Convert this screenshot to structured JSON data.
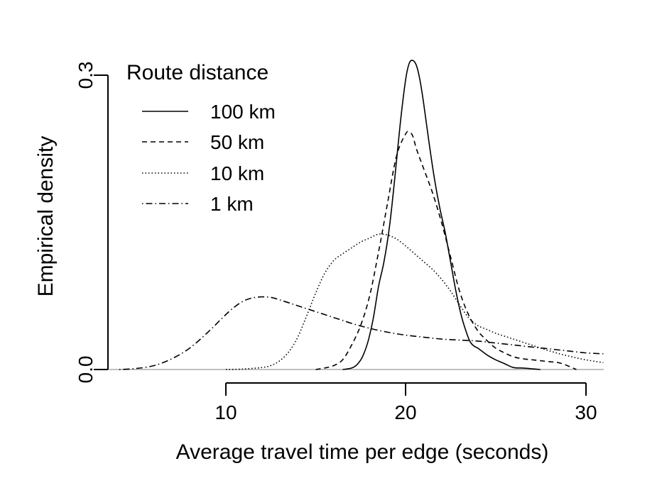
{
  "chart_data": {
    "type": "line",
    "title": "",
    "xlabel": "Average travel time per edge (seconds)",
    "ylabel": "Empirical density",
    "xlim": [
      4,
      31
    ],
    "ylim": [
      0.0,
      0.32
    ],
    "xticks": [
      10,
      20,
      30
    ],
    "yticks": [
      0.0,
      0.3
    ],
    "xtick_labels": [
      "10",
      "20",
      "30"
    ],
    "ytick_labels": [
      "0.0",
      "0.3"
    ],
    "grid": false,
    "legend": {
      "title": "Route distance",
      "position": "top-left"
    },
    "series": [
      {
        "name": "100 km",
        "style": "solid",
        "x": [
          16.5,
          17,
          17.3,
          17.6,
          17.9,
          18.2,
          18.5,
          18.8,
          19.1,
          19.4,
          19.7,
          20.0,
          20.2,
          20.4,
          20.6,
          20.8,
          21.0,
          21.3,
          21.6,
          21.9,
          22.2,
          22.5,
          22.8,
          23.1,
          23.4,
          23.6,
          23.8,
          24.0,
          24.3,
          24.6,
          25.0,
          25.5,
          26.0,
          26.5,
          27.0,
          27.5
        ],
        "y": [
          0.0,
          0.0015,
          0.005,
          0.013,
          0.028,
          0.052,
          0.085,
          0.11,
          0.145,
          0.195,
          0.25,
          0.295,
          0.312,
          0.315,
          0.31,
          0.295,
          0.272,
          0.232,
          0.195,
          0.165,
          0.14,
          0.11,
          0.08,
          0.055,
          0.037,
          0.028,
          0.024,
          0.022,
          0.018,
          0.014,
          0.01,
          0.006,
          0.002,
          0.0015,
          0.0008,
          0.0
        ]
      },
      {
        "name": "50 km",
        "style": "dashed",
        "x": [
          15,
          15.5,
          16,
          16.5,
          17,
          17.5,
          18,
          18.5,
          19,
          19.5,
          20.0,
          20.2,
          20.4,
          20.6,
          21.0,
          21.5,
          22.0,
          22.5,
          23.0,
          23.5,
          24.0,
          24.5,
          25.0,
          25.5,
          26.0,
          26.5,
          27.0,
          27.5,
          28.0,
          28.5,
          29.0,
          29.5
        ],
        "y": [
          0.0,
          0.0015,
          0.004,
          0.01,
          0.025,
          0.045,
          0.075,
          0.12,
          0.17,
          0.218,
          0.24,
          0.242,
          0.238,
          0.225,
          0.205,
          0.18,
          0.15,
          0.115,
          0.08,
          0.056,
          0.04,
          0.03,
          0.022,
          0.017,
          0.013,
          0.011,
          0.01,
          0.009,
          0.008,
          0.007,
          0.004,
          0.0
        ]
      },
      {
        "name": "10 km",
        "style": "dotted",
        "x": [
          10,
          11,
          12,
          12.5,
          13,
          13.5,
          14,
          14.5,
          15,
          15.5,
          16,
          16.5,
          17,
          17.5,
          18,
          18.5,
          19,
          19.5,
          20,
          20.5,
          21,
          21.5,
          22,
          22.5,
          23,
          23.5,
          24,
          24.5,
          25,
          25.5,
          26,
          27,
          28,
          29,
          30,
          31
        ],
        "y": [
          0.0,
          0.0005,
          0.002,
          0.004,
          0.009,
          0.018,
          0.033,
          0.055,
          0.078,
          0.098,
          0.111,
          0.118,
          0.124,
          0.13,
          0.134,
          0.138,
          0.137,
          0.133,
          0.126,
          0.118,
          0.11,
          0.102,
          0.092,
          0.08,
          0.066,
          0.053,
          0.045,
          0.041,
          0.037,
          0.034,
          0.031,
          0.025,
          0.019,
          0.014,
          0.01,
          0.007
        ]
      },
      {
        "name": "1 km",
        "style": "dotdash",
        "x": [
          4,
          5,
          6,
          7,
          8,
          9,
          10,
          10.5,
          11,
          11.5,
          12,
          12.5,
          13,
          13.5,
          14,
          15,
          16,
          17,
          18,
          19,
          20,
          21,
          22,
          23,
          24,
          25,
          26,
          27,
          28,
          29,
          30,
          31
        ],
        "y": [
          0.0,
          0.001,
          0.004,
          0.011,
          0.022,
          0.038,
          0.056,
          0.064,
          0.07,
          0.073,
          0.074,
          0.0735,
          0.071,
          0.068,
          0.065,
          0.059,
          0.053,
          0.047,
          0.042,
          0.038,
          0.035,
          0.033,
          0.031,
          0.03,
          0.029,
          0.027,
          0.025,
          0.023,
          0.021,
          0.019,
          0.017,
          0.016
        ]
      }
    ]
  },
  "dash_patterns": {
    "solid": "",
    "dashed": "7,5",
    "dotted": "1.5,3",
    "dotdash": "1.5,4,9,4"
  }
}
